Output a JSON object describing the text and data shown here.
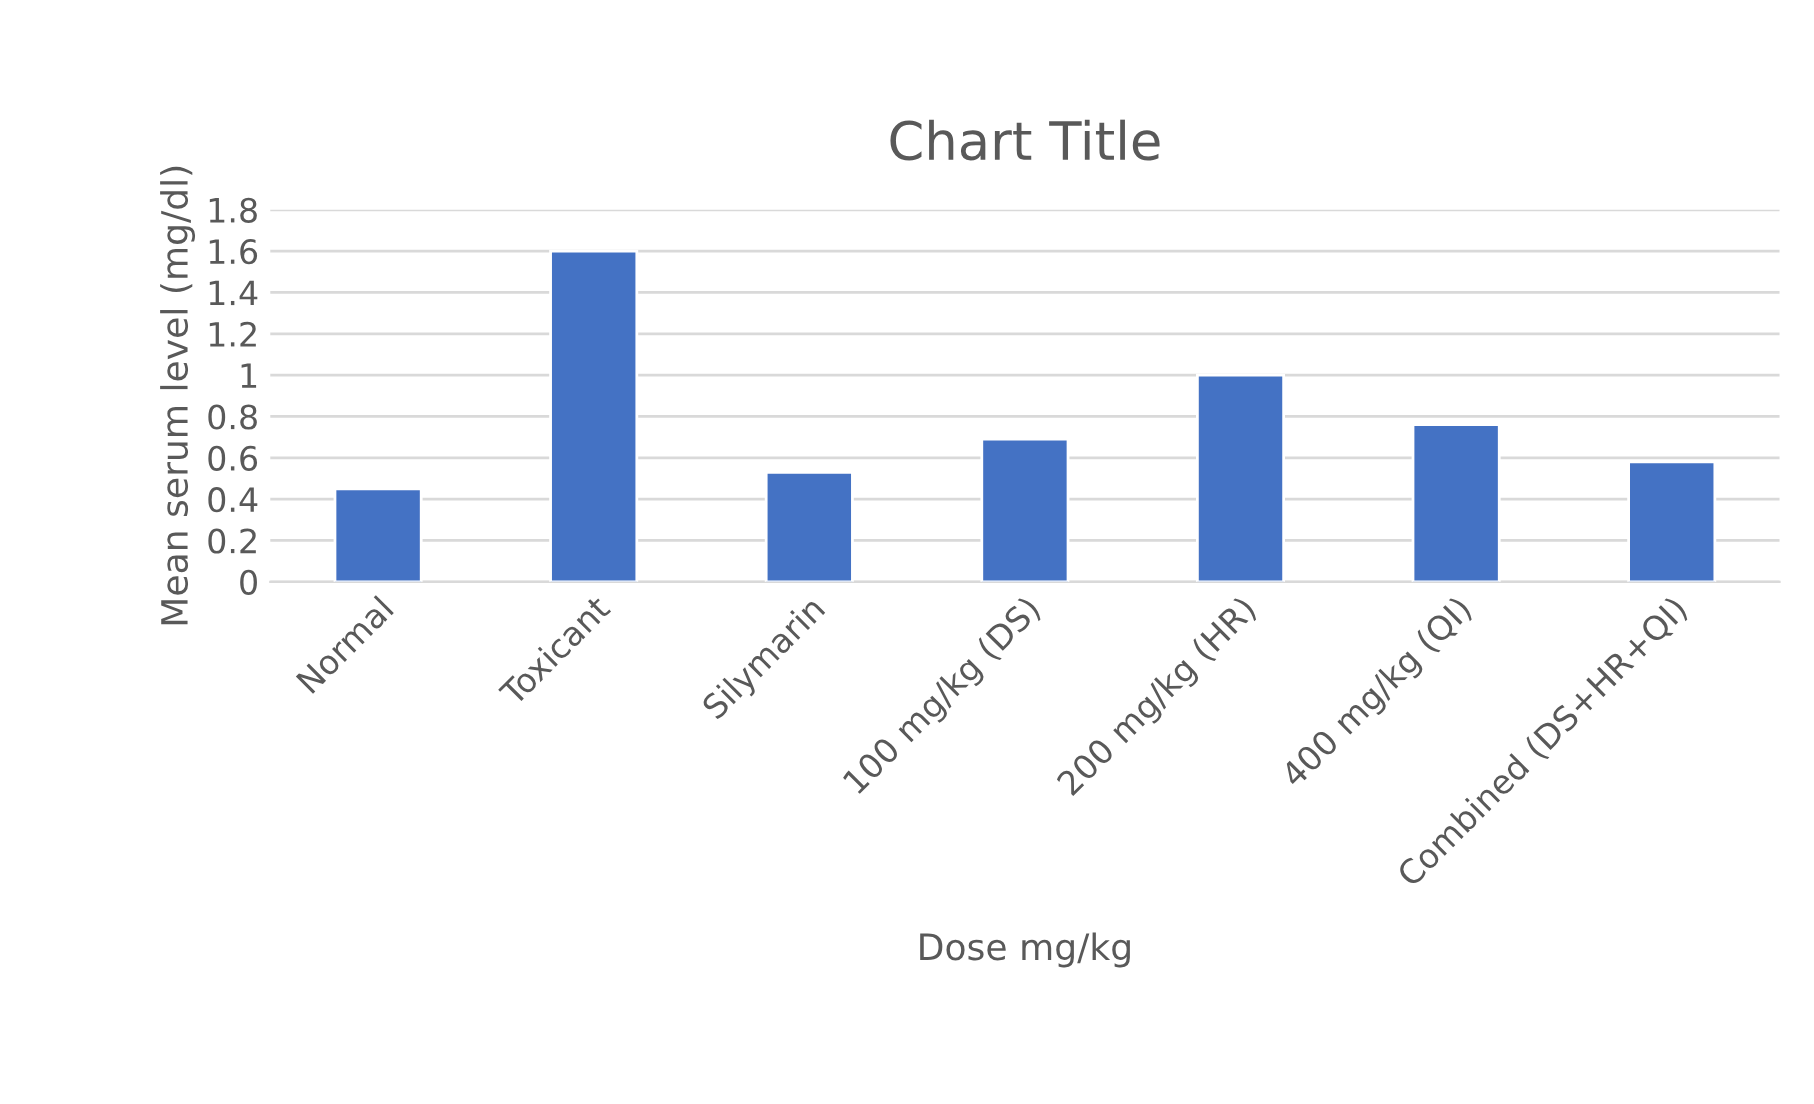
{
  "chart_data": {
    "type": "bar",
    "title": "Chart Title",
    "xlabel": "Dose mg/kg",
    "ylabel": "Mean serum level (mg/dl)",
    "categories": [
      "Normal",
      "Toxicant",
      "Silymarin",
      "100 mg/kg (DS)",
      "200 mg/kg (HR)",
      "400 mg/kg (QI)",
      "Combined (DS+HR+QI)"
    ],
    "values": [
      0.45,
      1.6,
      0.53,
      0.69,
      1.0,
      0.76,
      0.58
    ],
    "color": "#4472c4",
    "ylim": [
      0,
      1.8
    ],
    "yticks": [
      0,
      0.2,
      0.4,
      0.6,
      0.8,
      1,
      1.2,
      1.4,
      1.6,
      1.8
    ],
    "grid": "y",
    "legend": false
  }
}
